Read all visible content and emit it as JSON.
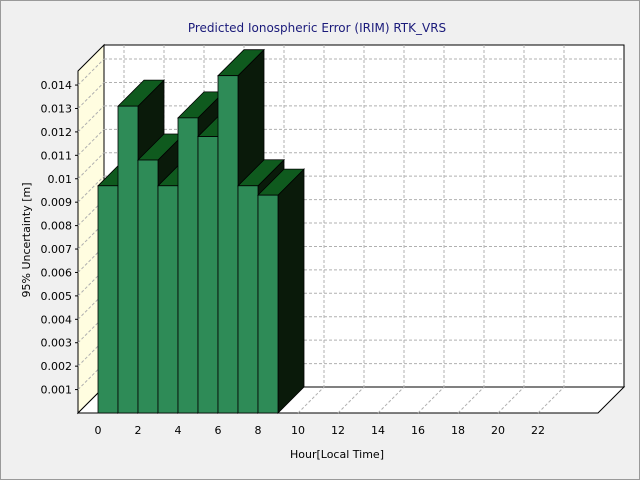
{
  "chart_data": {
    "type": "bar",
    "title": "Predicted Ionospheric Error (IRIM) RTK_VRS",
    "xlabel": "Hour[Local Time]",
    "ylabel": "95% Uncertainty [m]",
    "x_tick_labels": [
      "0",
      "2",
      "4",
      "6",
      "8",
      "10",
      "12",
      "14",
      "16",
      "18",
      "20",
      "22"
    ],
    "y_tick_labels": [
      "0.001",
      "0.002",
      "0.003",
      "0.004",
      "0.005",
      "0.006",
      "0.007",
      "0.008",
      "0.009",
      "0.01",
      "0.011",
      "0.012",
      "0.013",
      "0.014"
    ],
    "x": [
      0,
      1,
      2,
      3,
      4,
      5,
      6,
      7,
      8
    ],
    "values": [
      0.0097,
      0.0131,
      0.0108,
      0.0097,
      0.0126,
      0.0118,
      0.0144,
      0.0097,
      0.0093
    ],
    "xlim": [
      0,
      24
    ],
    "ylim": [
      0,
      0.0146
    ],
    "grid": true,
    "style": "3d",
    "colors": {
      "bar_front": "#2e8b57",
      "bar_top": "#0f5a1e",
      "bar_side": "#0a1a0a",
      "back_wall": "#ffffff",
      "left_wall": "#fffde0",
      "grid": "#b0b0b0",
      "title": "#1a1a7a"
    }
  }
}
